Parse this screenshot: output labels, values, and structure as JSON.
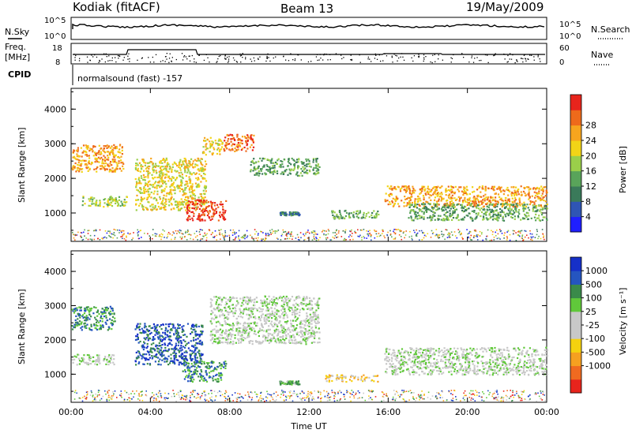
{
  "header": {
    "station": "Kodiak (fitACF)",
    "beam": "Beam 13",
    "date": "19/May/2009"
  },
  "top_panels": {
    "nsky_label": "N.Sky",
    "nsearch_label": "N.Search",
    "nsky_ticks": [
      "10^5",
      "10^0"
    ],
    "nsearch_ticks": [
      "10^5",
      "10^0"
    ],
    "freq_label_1": "Freq.",
    "freq_label_2": "[MHz]",
    "freq_ticks": [
      "18",
      "8"
    ],
    "nave_label": "Nave",
    "nave_ticks": [
      "60",
      "0"
    ],
    "cpid_label": "CPID",
    "cpid_text": "normalsound (fast) -157"
  },
  "colors": {
    "power_scale": [
      "#1f1fff",
      "#2f55b4",
      "#3a7a5a",
      "#59a45a",
      "#9acf4a",
      "#f2d417",
      "#f7a51e",
      "#ee6a1b",
      "#e8241c"
    ],
    "velocity_scale": [
      "#e8241c",
      "#f06a20",
      "#f6a020",
      "#f5d20f",
      "#c8c8c8",
      "#c8c8c8",
      "#60c83a",
      "#3a8a4a",
      "#2555c0",
      "#1630c8"
    ],
    "background": "#ffffff"
  },
  "chart_data": [
    {
      "type": "heatmap",
      "title": "",
      "xlabel": "Time UT",
      "ylabel": "Slant Range [km]",
      "colorbar_label": "Power [dB]",
      "colorbar_ticks": [
        "4",
        "8",
        "12",
        "16",
        "20",
        "24",
        "28"
      ],
      "x_ticks": [
        "00:00",
        "04:00",
        "08:00",
        "12:00",
        "16:00",
        "20:00",
        "00:00"
      ],
      "y_ticks": [
        "1000",
        "2000",
        "3000",
        "4000"
      ],
      "xlim": [
        0,
        24
      ],
      "ylim": [
        180,
        4600
      ],
      "regions": [
        {
          "t": [
            0.0,
            2.6
          ],
          "r": [
            2200,
            3000
          ],
          "level": 6
        },
        {
          "t": [
            0.5,
            2.8
          ],
          "r": [
            1200,
            1500
          ],
          "level": 4
        },
        {
          "t": [
            3.2,
            6.8
          ],
          "r": [
            1100,
            2600
          ],
          "level": 5
        },
        {
          "t": [
            5.8,
            7.8
          ],
          "r": [
            800,
            1400
          ],
          "level": 8
        },
        {
          "t": [
            6.6,
            7.6
          ],
          "r": [
            2700,
            3200
          ],
          "level": 5
        },
        {
          "t": [
            7.6,
            9.2
          ],
          "r": [
            2800,
            3300
          ],
          "level": 7
        },
        {
          "t": [
            9.0,
            12.5
          ],
          "r": [
            2100,
            2600
          ],
          "level": 3
        },
        {
          "t": [
            10.5,
            11.5
          ],
          "r": [
            950,
            1050
          ],
          "level": 2
        },
        {
          "t": [
            13.0,
            15.5
          ],
          "r": [
            850,
            1100
          ],
          "level": 3
        },
        {
          "t": [
            15.8,
            24.0
          ],
          "r": [
            1200,
            1800
          ],
          "level": 6
        },
        {
          "t": [
            17.0,
            24.0
          ],
          "r": [
            800,
            1300
          ],
          "level": 3
        }
      ]
    },
    {
      "type": "heatmap",
      "title": "",
      "xlabel": "Time UT",
      "ylabel": "Slant Range [km]",
      "colorbar_label": "Velocity [m s⁻¹]",
      "colorbar_ticks": [
        "1000",
        "500",
        "100",
        "25",
        "-25",
        "-100",
        "-500",
        "-1000"
      ],
      "x_ticks": [
        "00:00",
        "04:00",
        "08:00",
        "12:00",
        "16:00",
        "20:00",
        "00:00"
      ],
      "y_ticks": [
        "1000",
        "2000",
        "3000",
        "4000"
      ],
      "xlim": [
        0,
        24
      ],
      "ylim": [
        180,
        4600
      ],
      "regions": [
        {
          "t": [
            0.0,
            2.2
          ],
          "r": [
            2300,
            3000
          ],
          "level": 7
        },
        {
          "t": [
            0.0,
            2.2
          ],
          "r": [
            1300,
            1600
          ],
          "level": 5
        },
        {
          "t": [
            3.2,
            6.6
          ],
          "r": [
            1300,
            2500
          ],
          "level": 8
        },
        {
          "t": [
            5.6,
            7.8
          ],
          "r": [
            800,
            1400
          ],
          "level": 7
        },
        {
          "t": [
            7.0,
            12.5
          ],
          "r": [
            1900,
            3300
          ],
          "level": 5
        },
        {
          "t": [
            10.5,
            11.5
          ],
          "r": [
            720,
            820
          ],
          "level": 6
        },
        {
          "t": [
            12.8,
            15.5
          ],
          "r": [
            800,
            1000
          ],
          "level": 3
        },
        {
          "t": [
            15.8,
            24.0
          ],
          "r": [
            1000,
            1800
          ],
          "level": 5
        }
      ]
    }
  ]
}
